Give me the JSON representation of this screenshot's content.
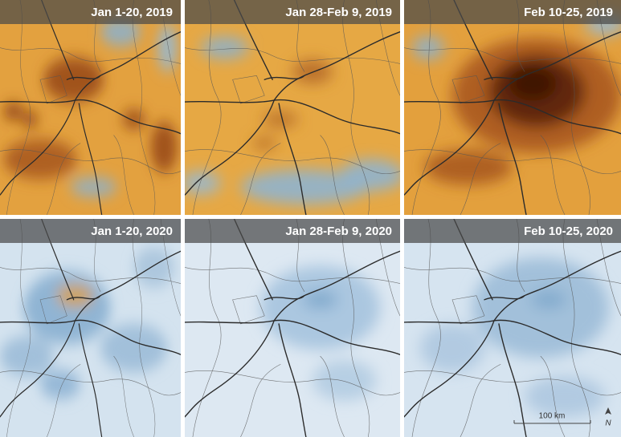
{
  "panels": [
    {
      "label": "Jan 1-20, 2019"
    },
    {
      "label": "Jan 28-Feb 9, 2019"
    },
    {
      "label": "Feb 10-25, 2019"
    },
    {
      "label": "Jan 1-20, 2020"
    },
    {
      "label": "Jan 28-Feb 9, 2020"
    },
    {
      "label": "Feb 10-25, 2020"
    }
  ],
  "scale_bar": {
    "label": "100 km"
  },
  "north_arrow": {
    "label": "N"
  }
}
